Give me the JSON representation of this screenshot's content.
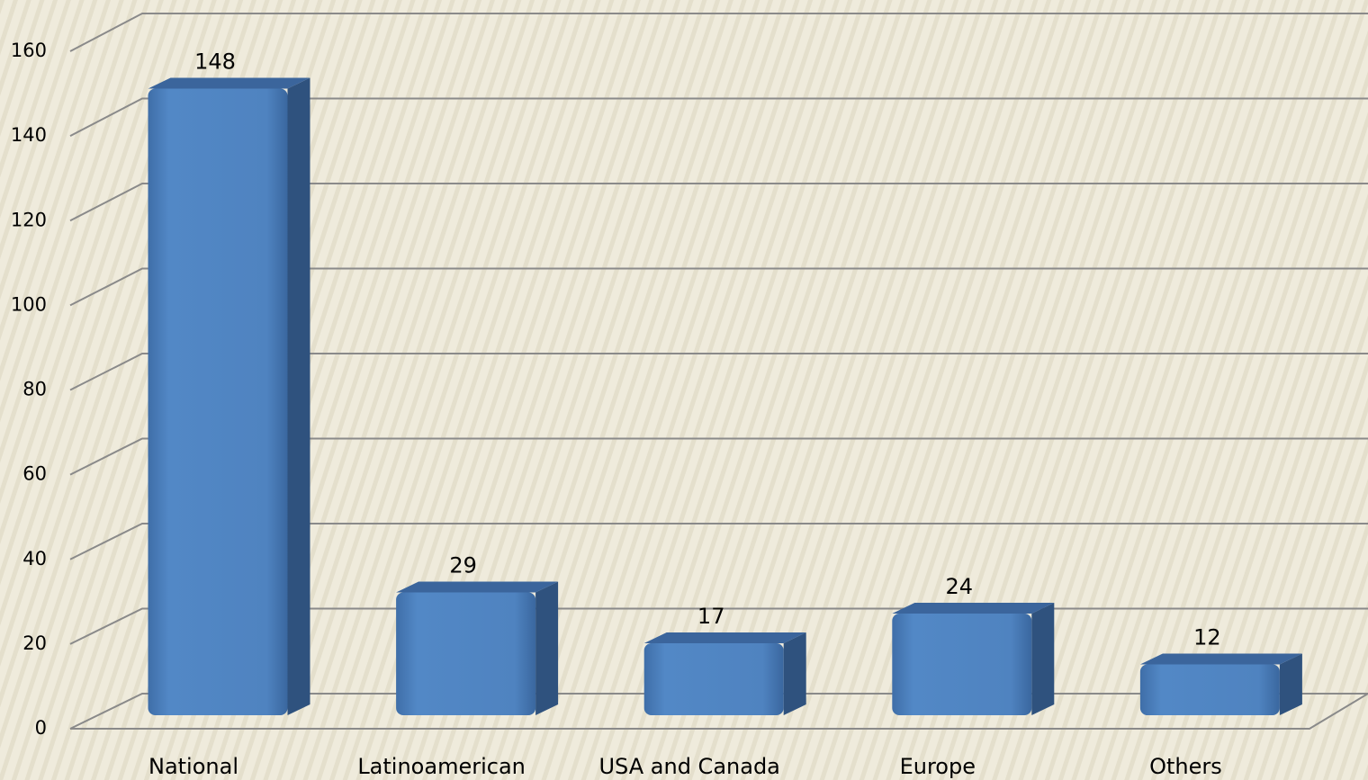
{
  "chart_data": {
    "type": "bar",
    "categories": [
      "National",
      "Latinoamerican",
      "USA and Canada",
      "Europe",
      "Others"
    ],
    "values": [
      148,
      29,
      17,
      24,
      12
    ],
    "color": "#4f81bd",
    "ylim": [
      0,
      160
    ],
    "yticks": [
      0,
      20,
      40,
      60,
      80,
      100,
      120,
      140,
      160
    ],
    "grid": true
  }
}
